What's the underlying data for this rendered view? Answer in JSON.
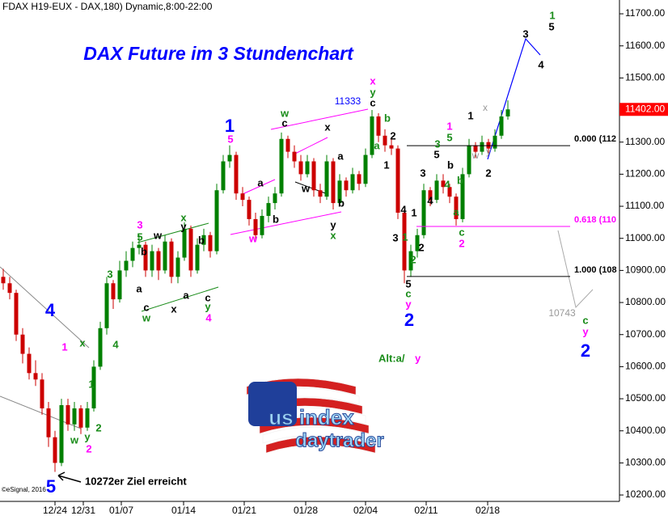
{
  "chart_data": {
    "type": "candlestick",
    "header": "FDAX H19-EUX - DAX,180) Dynamic,8:00-22:00",
    "title": "DAX Future im 3 Stundenchart",
    "copyright": "©eSignal, 2016",
    "up_color": "#008000",
    "down_color": "#cc0000",
    "ylim": [
      10180,
      11743
    ],
    "yticks": [
      {
        "value": 10200,
        "label": "10200.00"
      },
      {
        "value": 10300,
        "label": "10300.00"
      },
      {
        "value": 10400,
        "label": "10400.00"
      },
      {
        "value": 10500,
        "label": "10500.00"
      },
      {
        "value": 10600,
        "label": "10600.00"
      },
      {
        "value": 10700,
        "label": "10700.00"
      },
      {
        "value": 10800,
        "label": "10800.00"
      },
      {
        "value": 10900,
        "label": "10900.00"
      },
      {
        "value": 11000,
        "label": "11000.00"
      },
      {
        "value": 11100,
        "label": "11100.00"
      },
      {
        "value": 11200,
        "label": "11200.00"
      },
      {
        "value": 11300,
        "label": "11300.00"
      },
      {
        "value": 11400,
        "label": "11400.00"
      },
      {
        "value": 11500,
        "label": "11500.00"
      },
      {
        "value": 11600,
        "label": "11600.00"
      },
      {
        "value": 11700,
        "label": "11700.00"
      }
    ],
    "xtick_labels": [
      "12/24",
      "12/31",
      "01/07",
      "01/14",
      "01/21",
      "01/28",
      "02/04",
      "02/11",
      "02/18"
    ],
    "last_price": {
      "value": 11402,
      "label": "11402.00",
      "color": "#ff0000"
    },
    "candles": [
      [
        10880,
        10905,
        10840,
        10860
      ],
      [
        10860,
        10880,
        10810,
        10830
      ],
      [
        10830,
        10840,
        10680,
        10700
      ],
      [
        10700,
        10720,
        10610,
        10640
      ],
      [
        10640,
        10660,
        10560,
        10580
      ],
      [
        10580,
        10620,
        10540,
        10560
      ],
      [
        10560,
        10580,
        10450,
        10470
      ],
      [
        10470,
        10490,
        10350,
        10380
      ],
      [
        10380,
        10400,
        10272,
        10300
      ],
      [
        10300,
        10500,
        10290,
        10480
      ],
      [
        10480,
        10500,
        10400,
        10420
      ],
      [
        10420,
        10490,
        10400,
        10470
      ],
      [
        10470,
        10480,
        10390,
        10410
      ],
      [
        10410,
        10490,
        10400,
        10470
      ],
      [
        10470,
        10620,
        10460,
        10600
      ],
      [
        10600,
        10740,
        10590,
        10720
      ],
      [
        10720,
        10880,
        10700,
        10860
      ],
      [
        10860,
        10870,
        10780,
        10810
      ],
      [
        10810,
        10930,
        10800,
        10900
      ],
      [
        10900,
        10960,
        10880,
        10930
      ],
      [
        10930,
        10990,
        10910,
        10970
      ],
      [
        10970,
        11010,
        10950,
        10980
      ],
      [
        10980,
        10990,
        10880,
        10900
      ],
      [
        10900,
        10980,
        10880,
        10960
      ],
      [
        10960,
        10970,
        10870,
        10900
      ],
      [
        10900,
        11010,
        10890,
        10990
      ],
      [
        10990,
        11000,
        10860,
        10880
      ],
      [
        10880,
        10960,
        10860,
        10940
      ],
      [
        10940,
        11050,
        10930,
        11030
      ],
      [
        11030,
        11040,
        10880,
        10900
      ],
      [
        10900,
        11000,
        10890,
        10980
      ],
      [
        10980,
        11030,
        10960,
        11010
      ],
      [
        11010,
        11020,
        10940,
        10960
      ],
      [
        10960,
        11170,
        10950,
        11150
      ],
      [
        11150,
        11260,
        11140,
        11240
      ],
      [
        11240,
        11290,
        11220,
        11260
      ],
      [
        11260,
        11270,
        11120,
        11140
      ],
      [
        11140,
        11160,
        11100,
        11120
      ],
      [
        11120,
        11130,
        11040,
        11060
      ],
      [
        11060,
        11080,
        10990,
        11010
      ],
      [
        11010,
        11090,
        11000,
        11070
      ],
      [
        11070,
        11130,
        11050,
        11110
      ],
      [
        11110,
        11160,
        11090,
        11140
      ],
      [
        11140,
        11330,
        11130,
        11310
      ],
      [
        11310,
        11320,
        11250,
        11270
      ],
      [
        11270,
        11290,
        11220,
        11240
      ],
      [
        11240,
        11260,
        11180,
        11200
      ],
      [
        11200,
        11260,
        11190,
        11240
      ],
      [
        11240,
        11250,
        11130,
        11150
      ],
      [
        11150,
        11170,
        11110,
        11130
      ],
      [
        11130,
        11260,
        11120,
        11240
      ],
      [
        11240,
        11250,
        11090,
        11110
      ],
      [
        11110,
        11200,
        11100,
        11180
      ],
      [
        11180,
        11190,
        11130,
        11150
      ],
      [
        11150,
        11220,
        11140,
        11200
      ],
      [
        11200,
        11210,
        11150,
        11170
      ],
      [
        11170,
        11280,
        11160,
        11260
      ],
      [
        11260,
        11400,
        11250,
        11380
      ],
      [
        11380,
        11390,
        11300,
        11320
      ],
      [
        11320,
        11340,
        11270,
        11290
      ],
      [
        11290,
        11310,
        11260,
        11280
      ],
      [
        11280,
        11290,
        11060,
        11080
      ],
      [
        11080,
        11090,
        10860,
        10900
      ],
      [
        10900,
        10980,
        10880,
        10960
      ],
      [
        10960,
        11030,
        10940,
        11010
      ],
      [
        11010,
        11170,
        11000,
        11150
      ],
      [
        11150,
        11160,
        11100,
        11120
      ],
      [
        11120,
        11200,
        11110,
        11180
      ],
      [
        11180,
        11200,
        11140,
        11160
      ],
      [
        11160,
        11170,
        11110,
        11130
      ],
      [
        11130,
        11140,
        11040,
        11060
      ],
      [
        11060,
        11220,
        11050,
        11200
      ],
      [
        11200,
        11310,
        11190,
        11290
      ],
      [
        11290,
        11300,
        11250,
        11270
      ],
      [
        11270,
        11320,
        11260,
        11300
      ],
      [
        11300,
        11310,
        11260,
        11280
      ],
      [
        11280,
        11340,
        11270,
        11320
      ],
      [
        11320,
        11400,
        11310,
        11380
      ],
      [
        11380,
        11430,
        11370,
        11402
      ]
    ],
    "fib_levels": [
      {
        "label": "0.000 (112",
        "value": 11289,
        "color": "#000000"
      },
      {
        "label": "0.618 (110",
        "value": 11037,
        "color": "#ff00ff"
      },
      {
        "label": "1.000 (108",
        "value": 10881,
        "color": "#000000"
      }
    ],
    "annotations": [
      {
        "text": "4",
        "color": "#0000ff"
      },
      {
        "text": "1",
        "color": "#ff00ff"
      },
      {
        "text": "x",
        "color": "#1a8c1a"
      },
      {
        "text": "1",
        "color": "#1a8c1a"
      },
      {
        "text": "w",
        "color": "#1a8c1a"
      },
      {
        "text": "y",
        "color": "#1a8c1a"
      },
      {
        "text": "2",
        "color": "#ff00ff"
      },
      {
        "text": "2",
        "color": "#1a8c1a"
      },
      {
        "text": "5",
        "color": "#0000ff"
      },
      {
        "text": "10272er Ziel erreicht",
        "color": "#000000"
      },
      {
        "text": "3",
        "color": "#1a8c1a"
      },
      {
        "text": "4",
        "color": "#1a8c1a"
      },
      {
        "text": "3",
        "color": "#ff00ff"
      },
      {
        "text": "5",
        "color": "#1a8c1a"
      },
      {
        "text": "w",
        "color": "#000000"
      },
      {
        "text": "b",
        "color": "#000000"
      },
      {
        "text": "a",
        "color": "#000000"
      },
      {
        "text": "c",
        "color": "#000000"
      },
      {
        "text": "w",
        "color": "#1a8c1a"
      },
      {
        "text": "x",
        "color": "#000000"
      },
      {
        "text": "x",
        "color": "#1a8c1a"
      },
      {
        "text": "y",
        "color": "#000000"
      },
      {
        "text": "b",
        "color": "#000000"
      },
      {
        "text": "a",
        "color": "#000000"
      },
      {
        "text": "c",
        "color": "#000000"
      },
      {
        "text": "y",
        "color": "#1a8c1a"
      },
      {
        "text": "4",
        "color": "#ff00ff"
      },
      {
        "text": "1",
        "color": "#0000ff"
      },
      {
        "text": "5",
        "color": "#ff00ff"
      },
      {
        "text": "a",
        "color": "#000000"
      },
      {
        "text": "b",
        "color": "#000000"
      },
      {
        "text": "w",
        "color": "#ff00ff"
      },
      {
        "text": "w",
        "color": "#1a8c1a"
      },
      {
        "text": "c",
        "color": "#000000"
      },
      {
        "text": "x",
        "color": "#000000"
      },
      {
        "text": "w",
        "color": "#000000"
      },
      {
        "text": "a",
        "color": "#000000"
      },
      {
        "text": "b",
        "color": "#000000"
      },
      {
        "text": "y",
        "color": "#000000"
      },
      {
        "text": "x",
        "color": "#1a8c1a"
      },
      {
        "text": "11333",
        "color": "#0000ff"
      },
      {
        "text": "x",
        "color": "#ff00ff"
      },
      {
        "text": "y",
        "color": "#1a8c1a"
      },
      {
        "text": "c",
        "color": "#000000"
      },
      {
        "text": "b",
        "color": "#1a8c1a"
      },
      {
        "text": "a",
        "color": "#1a8c1a"
      },
      {
        "text": "2",
        "color": "#000000"
      },
      {
        "text": "1",
        "color": "#000000"
      },
      {
        "text": "4",
        "color": "#000000"
      },
      {
        "text": "3",
        "color": "#000000"
      },
      {
        "text": "1",
        "color": "#1a8c1a"
      },
      {
        "text": "1",
        "color": "#000000"
      },
      {
        "text": "2",
        "color": "#000000"
      },
      {
        "text": "2",
        "color": "#1a8c1a"
      },
      {
        "text": "5",
        "color": "#000000"
      },
      {
        "text": "c",
        "color": "#1a8c1a"
      },
      {
        "text": "y",
        "color": "#ff00ff"
      },
      {
        "text": "2",
        "color": "#0000ff"
      },
      {
        "text": "3",
        "color": "#000000"
      },
      {
        "text": "4",
        "color": "#000000"
      },
      {
        "text": "3",
        "color": "#1a8c1a"
      },
      {
        "text": "5",
        "color": "#000000"
      },
      {
        "text": "1",
        "color": "#ff00ff"
      },
      {
        "text": "5",
        "color": "#1a8c1a"
      },
      {
        "text": "b",
        "color": "#000000"
      },
      {
        "text": "4",
        "color": "#1a8c1a"
      },
      {
        "text": "b",
        "color": "#1a8c1a"
      },
      {
        "text": "a",
        "color": "#1a8c1a"
      },
      {
        "text": "c",
        "color": "#1a8c1a"
      },
      {
        "text": "2",
        "color": "#ff00ff"
      },
      {
        "text": "1",
        "color": "#000000"
      },
      {
        "text": "x",
        "color": "#999999"
      },
      {
        "text": "w",
        "color": "#999999"
      },
      {
        "text": "y",
        "color": "#999999"
      },
      {
        "text": "2",
        "color": "#000000"
      },
      {
        "text": "3",
        "color": "#000000"
      },
      {
        "text": "4",
        "color": "#000000"
      },
      {
        "text": "1",
        "color": "#1a8c1a"
      },
      {
        "text": "5",
        "color": "#000000"
      },
      {
        "text": "10743",
        "color": "#999999"
      },
      {
        "text": "c",
        "color": "#1a8c1a"
      },
      {
        "text": "y",
        "color": "#ff00ff"
      },
      {
        "text": "2",
        "color": "#0000ff"
      },
      {
        "text": "Alt:a/",
        "color": "#1a8c1a"
      },
      {
        "text": "y",
        "color": "#ff00ff"
      }
    ],
    "logo": {
      "line1": "us index",
      "line2": "daytrader"
    }
  }
}
